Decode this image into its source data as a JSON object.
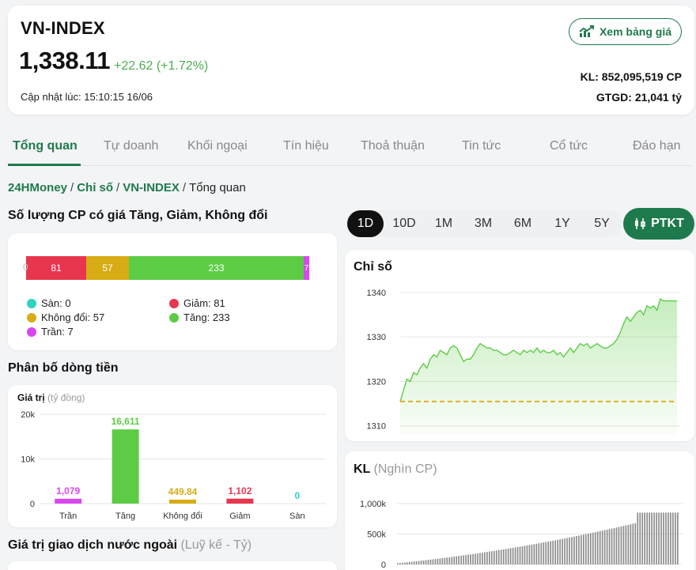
{
  "header": {
    "title": "VN-INDEX",
    "price": "1,338.11",
    "change": "+22.62 (+1.72%)",
    "updated": "Cập nhật lúc: 15:10:15 16/06",
    "board_button": "Xem bảng giá",
    "volume": "KL: 852,095,519 CP",
    "value": "GTGD: 21,041 tỷ",
    "change_color": "#4caf50",
    "accent": "#1e7a4c"
  },
  "tabs": [
    "Tổng quan",
    "Tự doanh",
    "Khối ngoại",
    "Tín hiệu",
    "Thoả thuận",
    "Tin tức",
    "Cổ tức",
    "Đáo hạn"
  ],
  "breadcrumb": {
    "home": "24HMoney",
    "section": "Chỉ số",
    "index": "VN-INDEX",
    "current": "Tổng quan"
  },
  "breadth": {
    "title": "Số lượng CP có giá Tăng, Giảm, Không đổi",
    "legend": [
      {
        "label": "Sàn: 0",
        "color": "#2dd4bf"
      },
      {
        "label": "Giảm: 81",
        "color": "#e8364f"
      },
      {
        "label": "Không đổi: 57",
        "color": "#d8ac14"
      },
      {
        "label": "Tăng: 233",
        "color": "#5ccc45"
      },
      {
        "label": "Trần: 7",
        "color": "#d946ef"
      }
    ]
  },
  "flow": {
    "title": "Phân bố dòng tiền",
    "axis_label": "Giá trị",
    "axis_unit": "(tỷ đồng)"
  },
  "foreign": {
    "title": "Giá trị giao dịch nước ngoài",
    "unit": "(Luỹ kế - Tỷ)"
  },
  "range": {
    "options": [
      "1D",
      "10D",
      "1M",
      "3M",
      "6M",
      "1Y",
      "5Y"
    ],
    "selected": "1D",
    "ptkt_label": "PTKT"
  },
  "index_chart": {
    "title": "Chỉ số"
  },
  "volume_chart": {
    "title": "KL",
    "unit": "(Nghìn CP)"
  },
  "chart_data": [
    {
      "type": "bar",
      "stacked": true,
      "categories": [
        "Sàn",
        "Giảm",
        "Không đổi",
        "Tăng",
        "Trần"
      ],
      "values": [
        0,
        81,
        57,
        233,
        7
      ],
      "labels": [
        "0",
        "81",
        "57",
        "233",
        "7"
      ],
      "colors": [
        "#2dd4bf",
        "#e8364f",
        "#d8ac14",
        "#5ccc45",
        "#d946ef"
      ]
    },
    {
      "type": "bar",
      "categories": [
        "Trần",
        "Tăng",
        "Không đổi",
        "Giảm",
        "Sàn"
      ],
      "values": [
        1079,
        16611,
        449.84,
        1102,
        0
      ],
      "labels": [
        "1,079",
        "16,611",
        "449.84",
        "1,102",
        "0"
      ],
      "colors": [
        "#d946ef",
        "#5ccc45",
        "#d8ac14",
        "#e8364f",
        "#2dd4bf"
      ],
      "ylabel": "Giá trị (tỷ đồng)",
      "yticks": [
        "0",
        "10k",
        "20k"
      ],
      "ylim": [
        0,
        20000
      ],
      "grid": true
    },
    {
      "type": "area",
      "ylim": [
        1308,
        1343
      ],
      "yticks": [
        1310,
        1320,
        1330,
        1340
      ],
      "reference": 1315.49,
      "values": [
        1315.5,
        1318,
        1320.5,
        1320,
        1322,
        1321.5,
        1323,
        1324,
        1323,
        1325,
        1326,
        1325.5,
        1327,
        1326.5,
        1326,
        1327.5,
        1328,
        1327.5,
        1326,
        1324.5,
        1325,
        1325,
        1326,
        1327.5,
        1328.5,
        1328,
        1327.5,
        1327.5,
        1327,
        1327,
        1326.5,
        1326,
        1326,
        1326.5,
        1327,
        1326.5,
        1326,
        1327,
        1326.5,
        1327,
        1326.5,
        1327.5,
        1326.5,
        1327,
        1326.5,
        1326.5,
        1327,
        1326,
        1326.5,
        1325.5,
        1326.5,
        1327.5,
        1326.5,
        1327.5,
        1328.5,
        1328,
        1328.5,
        1327.5,
        1328,
        1328.5,
        1328,
        1327.5,
        1327.5,
        1328,
        1328.5,
        1329.5,
        1331,
        1333,
        1334.5,
        1333.5,
        1334.5,
        1335.5,
        1336,
        1335,
        1337,
        1336.5,
        1337,
        1336,
        1338.5,
        1338.1,
        1338.1,
        1338.1,
        1338.1,
        1338.1
      ],
      "grid": true
    },
    {
      "type": "bar",
      "cumulative": true,
      "ylim": [
        0,
        1000000
      ],
      "yticks": [
        "0",
        "500k",
        "1,000k"
      ],
      "final_value": 852096,
      "bar_count": 120,
      "grid": true
    }
  ]
}
